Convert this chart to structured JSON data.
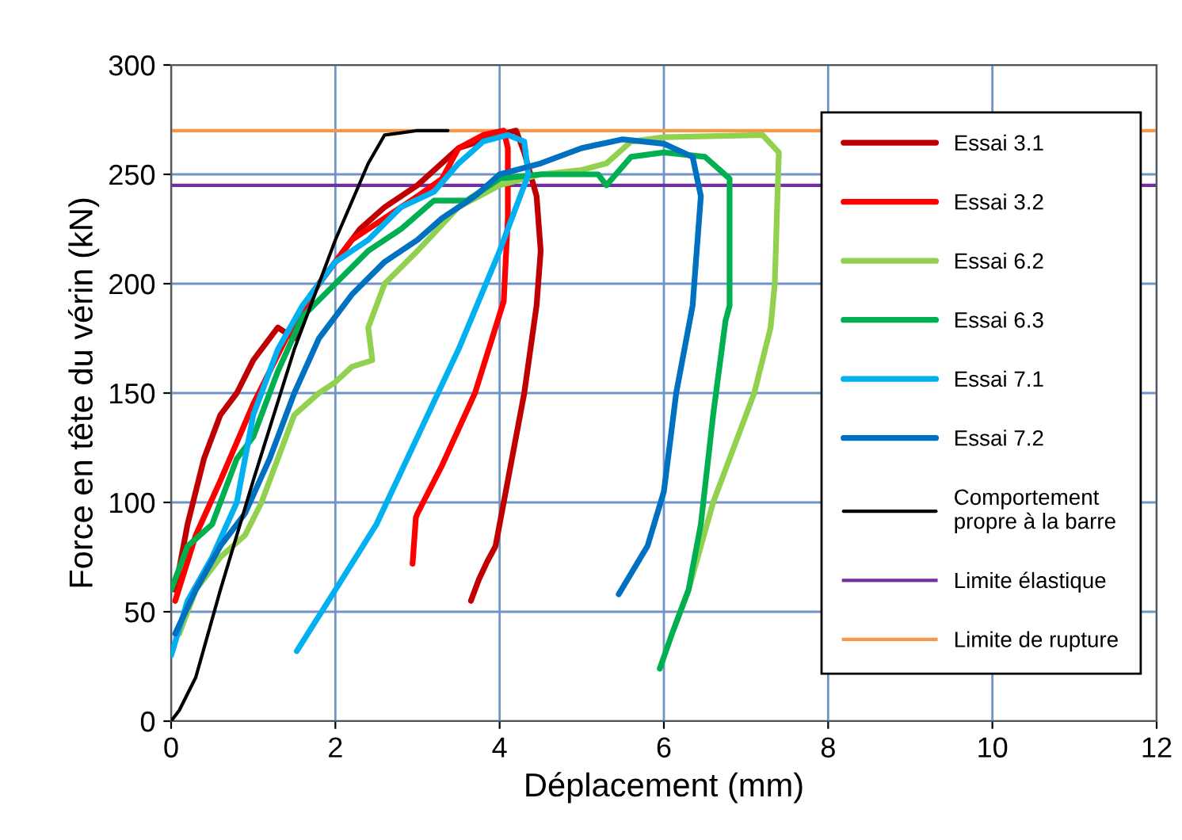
{
  "chart_data": {
    "type": "line",
    "xlabel": "Déplacement (mm)",
    "ylabel": "Force en tête du vérin (kN)",
    "xlim": [
      0,
      12
    ],
    "ylim": [
      0,
      300
    ],
    "xticks": [
      0,
      2,
      4,
      6,
      8,
      10,
      12
    ],
    "yticks": [
      0,
      50,
      100,
      150,
      200,
      250,
      300
    ],
    "grid": true,
    "legend": "right",
    "marker": "none",
    "line_style": "solid",
    "series": [
      {
        "name": "Essai 3.1",
        "color": "#c00000",
        "x": [
          0.05,
          0.2,
          0.4,
          0.6,
          0.8,
          1.0,
          1.3,
          1.5,
          1.7,
          2.0,
          2.3,
          2.6,
          3.0,
          3.5,
          4.0,
          4.2,
          4.3,
          4.45,
          4.5,
          4.45,
          4.3,
          4.1,
          3.95,
          3.85,
          3.75,
          3.65
        ],
        "values": [
          60,
          90,
          120,
          140,
          150,
          165,
          180,
          175,
          195,
          210,
          225,
          235,
          245,
          262,
          268,
          270,
          260,
          240,
          215,
          190,
          150,
          110,
          80,
          73,
          65,
          55
        ]
      },
      {
        "name": "Essai 3.2",
        "color": "#ff0000",
        "x": [
          0.05,
          0.3,
          0.6,
          1.0,
          1.4,
          1.8,
          2.2,
          2.6,
          3.0,
          3.3,
          3.5,
          3.8,
          4.05,
          4.1,
          4.1,
          4.05,
          3.7,
          3.3,
          3.0,
          2.98,
          2.94
        ],
        "values": [
          55,
          85,
          110,
          145,
          175,
          200,
          220,
          230,
          240,
          248,
          262,
          268,
          270,
          262,
          230,
          192,
          150,
          117,
          95,
          93,
          72
        ]
      },
      {
        "name": "Essai 6.2",
        "color": "#92d050",
        "x": [
          0.1,
          0.3,
          0.6,
          0.9,
          1.1,
          1.3,
          1.5,
          1.8,
          2.0,
          2.2,
          2.45,
          2.4,
          2.6,
          3.0,
          3.5,
          4.0,
          4.5,
          5.0,
          5.3,
          5.6,
          6.0,
          7.2,
          7.4,
          7.35,
          7.3,
          7.1,
          6.6,
          6.3,
          6.15
        ],
        "values": [
          40,
          60,
          75,
          85,
          100,
          120,
          140,
          150,
          155,
          162,
          165,
          180,
          200,
          215,
          235,
          245,
          250,
          252,
          255,
          265,
          267,
          268,
          260,
          200,
          180,
          150,
          100,
          60,
          45
        ]
      },
      {
        "name": "Essai 6.3",
        "color": "#00b050",
        "x": [
          0.0,
          0.2,
          0.5,
          0.8,
          1.0,
          1.3,
          1.6,
          2.0,
          2.4,
          2.8,
          3.2,
          3.6,
          4.0,
          4.5,
          5.2,
          5.3,
          5.6,
          6.0,
          6.5,
          6.8,
          6.8,
          6.75,
          6.6,
          6.45,
          6.3,
          6.1,
          5.95
        ],
        "values": [
          60,
          80,
          90,
          120,
          130,
          160,
          185,
          200,
          215,
          225,
          238,
          238,
          248,
          250,
          250,
          245,
          258,
          260,
          258,
          248,
          190,
          183,
          140,
          90,
          60,
          40,
          24
        ]
      },
      {
        "name": "Essai 7.1",
        "color": "#00b0f0",
        "x": [
          0.0,
          0.2,
          0.5,
          0.8,
          1.0,
          1.3,
          1.6,
          2.0,
          2.4,
          2.8,
          3.2,
          3.5,
          3.8,
          4.1,
          4.3,
          4.35,
          4.0,
          3.5,
          3.0,
          2.5,
          2.0,
          1.53
        ],
        "values": [
          30,
          55,
          75,
          100,
          140,
          170,
          190,
          210,
          220,
          235,
          242,
          255,
          265,
          268,
          265,
          250,
          215,
          170,
          130,
          90,
          60,
          32
        ]
      },
      {
        "name": "Essai 7.2",
        "color": "#0070c0",
        "x": [
          0.05,
          0.3,
          0.6,
          0.9,
          1.2,
          1.5,
          1.8,
          2.2,
          2.6,
          3.0,
          3.3,
          3.7,
          4.0,
          4.5,
          5.0,
          5.5,
          6.0,
          6.35,
          6.45,
          6.35,
          6.15,
          6.0,
          5.8,
          5.45
        ],
        "values": [
          40,
          60,
          80,
          95,
          120,
          150,
          175,
          195,
          210,
          220,
          230,
          240,
          250,
          255,
          262,
          266,
          264,
          258,
          240,
          190,
          150,
          105,
          80,
          58
        ]
      },
      {
        "name": "Comportement\npropre à la barre",
        "color": "#000000",
        "x": [
          0,
          0.1,
          0.3,
          0.6,
          1.0,
          1.5,
          2.0,
          2.4,
          2.6,
          3.0,
          3.37
        ],
        "values": [
          0,
          5,
          20,
          60,
          110,
          170,
          220,
          255,
          268,
          270,
          270
        ]
      }
    ],
    "ref_lines": [
      {
        "axis": "y",
        "value": 245,
        "label": "Limite élastique",
        "color": "#7030a0"
      },
      {
        "axis": "y",
        "value": 270,
        "label": "Limite de rupture",
        "color": "#f79646"
      }
    ]
  }
}
